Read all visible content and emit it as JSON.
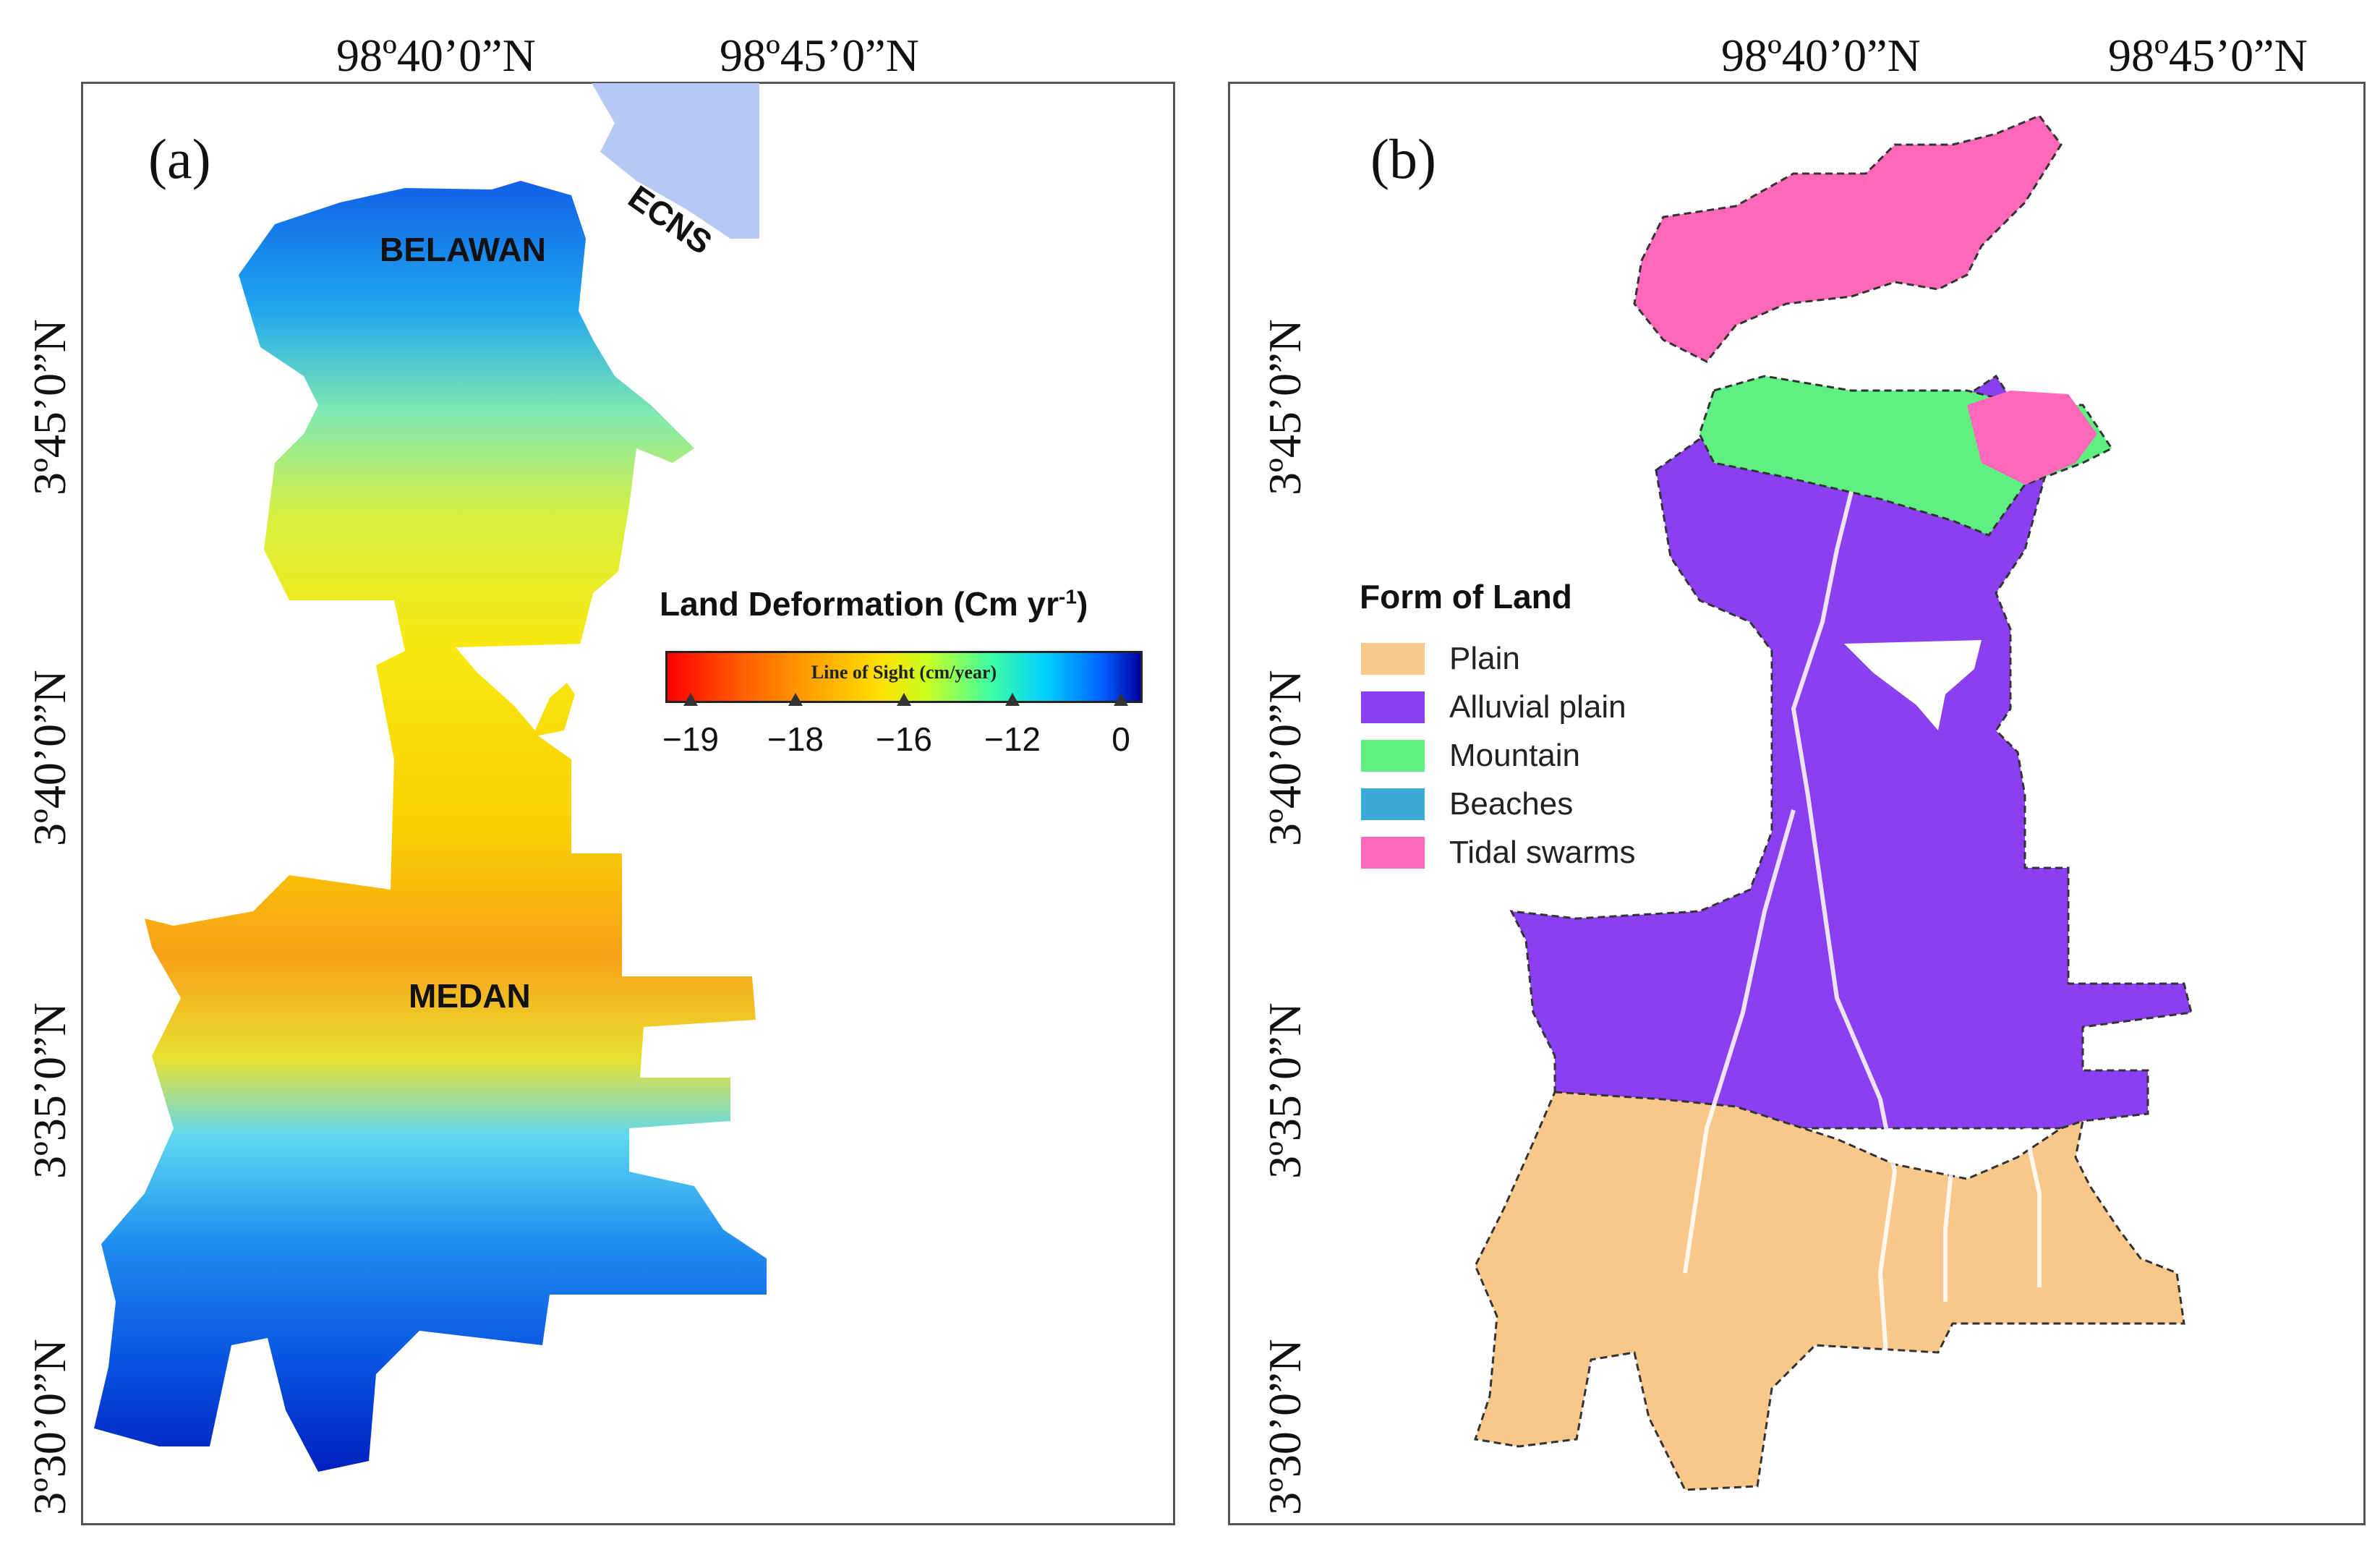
{
  "panel_a": {
    "letter": "(a)",
    "lon_labels": [
      "98º40’0”N",
      "98º45’0”N"
    ],
    "lat_labels": [
      "3º45’0”N",
      "3º40’0”N",
      "3º35’0”N",
      "3º30’0”N"
    ],
    "places": {
      "belawan": "BELAWAN",
      "ecns": "ECNS",
      "medan": "MEDAN"
    },
    "legend": {
      "title": "Land Deformation (Cm yr",
      "title_sup": "-1",
      "title_end": ")",
      "bar_label": "Line of Sight (cm/year)",
      "ticks": [
        "−19",
        "−18",
        "−16",
        "−12",
        "0"
      ],
      "colors": [
        "#ff0000",
        "#ffa000",
        "#ffe000",
        "#40ffa0",
        "#00d0ff",
        "#0000a0"
      ]
    }
  },
  "panel_b": {
    "letter": "(b)",
    "lon_labels": [
      "98º40’0”N",
      "98º45’0”N"
    ],
    "lat_labels": [
      "3º45’0”N",
      "3º40’0”N",
      "3º35’0”N",
      "3º30’0”N"
    ],
    "legend": {
      "title": "Form of Land",
      "items": [
        {
          "label": "Plain",
          "color": "#f8c88a"
        },
        {
          "label": "Alluvial plain",
          "color": "#8a3ff0"
        },
        {
          "label": "Mountain",
          "color": "#5ef080"
        },
        {
          "label": "Beaches",
          "color": "#3aa8d8"
        },
        {
          "label": "Tidal swarms",
          "color": "#ff68b8"
        }
      ]
    }
  }
}
